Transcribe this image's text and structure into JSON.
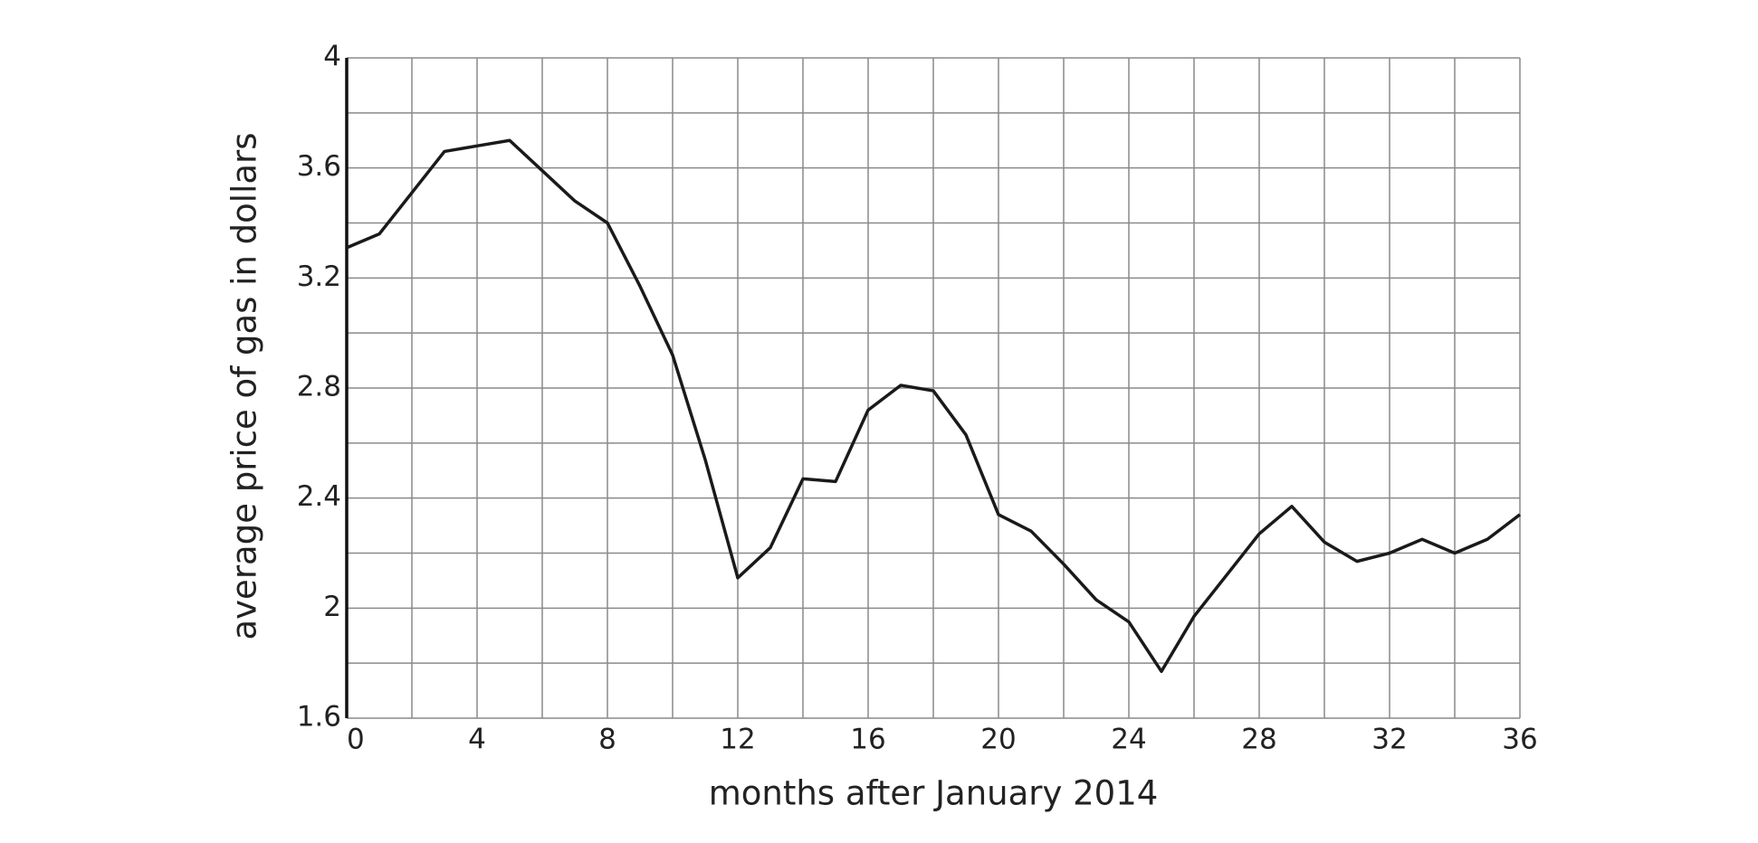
{
  "chart_data": {
    "type": "line",
    "x_label": "months after January 2014",
    "y_label": "average price of gas in dollars",
    "x": [
      0,
      1,
      2,
      3,
      4,
      5,
      6,
      7,
      8,
      9,
      10,
      11,
      12,
      13,
      14,
      15,
      16,
      17,
      18,
      19,
      20,
      21,
      22,
      23,
      24,
      25,
      26,
      27,
      28,
      29,
      30,
      31,
      32,
      33,
      34,
      35,
      36
    ],
    "series": [
      {
        "color": "#1a1a1a",
        "values": [
          3.31,
          3.36,
          3.51,
          3.66,
          3.68,
          3.7,
          3.59,
          3.48,
          3.4,
          3.17,
          2.92,
          2.54,
          2.11,
          2.22,
          2.47,
          2.46,
          2.72,
          2.81,
          2.79,
          2.63,
          2.34,
          2.28,
          2.16,
          2.03,
          1.95,
          1.77,
          1.97,
          2.12,
          2.27,
          2.37,
          2.24,
          2.17,
          2.2,
          2.25,
          2.2,
          2.25,
          2.34
        ]
      }
    ],
    "xlim": [
      0,
      36
    ],
    "xticks": [
      0,
      4,
      8,
      12,
      16,
      20,
      24,
      28,
      32,
      36
    ],
    "ylim": [
      1.6,
      4
    ],
    "yticks": [
      1.6,
      2,
      2.4,
      2.8,
      3.2,
      3.6,
      4
    ],
    "grid": true,
    "minor_grid": true
  }
}
